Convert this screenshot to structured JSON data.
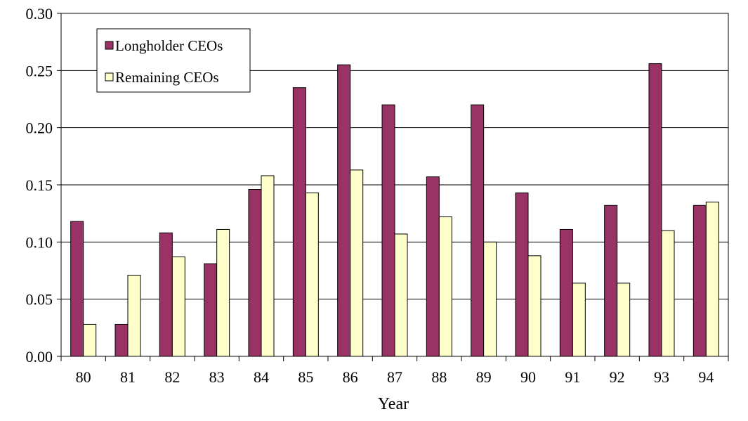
{
  "chart_data": {
    "type": "bar",
    "title": "",
    "xlabel": "Year",
    "ylabel": "",
    "ylim": [
      0,
      0.3
    ],
    "yticks": [
      "0.00",
      "0.05",
      "0.10",
      "0.15",
      "0.20",
      "0.25",
      "0.30"
    ],
    "grid": "horizontal",
    "legend_position": "top-left",
    "categories": [
      "80",
      "81",
      "82",
      "83",
      "84",
      "85",
      "86",
      "87",
      "88",
      "89",
      "90",
      "91",
      "92",
      "93",
      "94"
    ],
    "series": [
      {
        "name": "Longholder CEOs",
        "color": "#993366",
        "values": [
          0.118,
          0.028,
          0.108,
          0.081,
          0.146,
          0.235,
          0.255,
          0.22,
          0.157,
          0.22,
          0.143,
          0.111,
          0.132,
          0.256,
          0.132
        ]
      },
      {
        "name": "Remaining CEOs",
        "color": "#FFFFCC",
        "values": [
          0.028,
          0.071,
          0.087,
          0.111,
          0.158,
          0.143,
          0.163,
          0.107,
          0.122,
          0.1,
          0.088,
          0.064,
          0.064,
          0.11,
          0.135
        ]
      }
    ]
  }
}
